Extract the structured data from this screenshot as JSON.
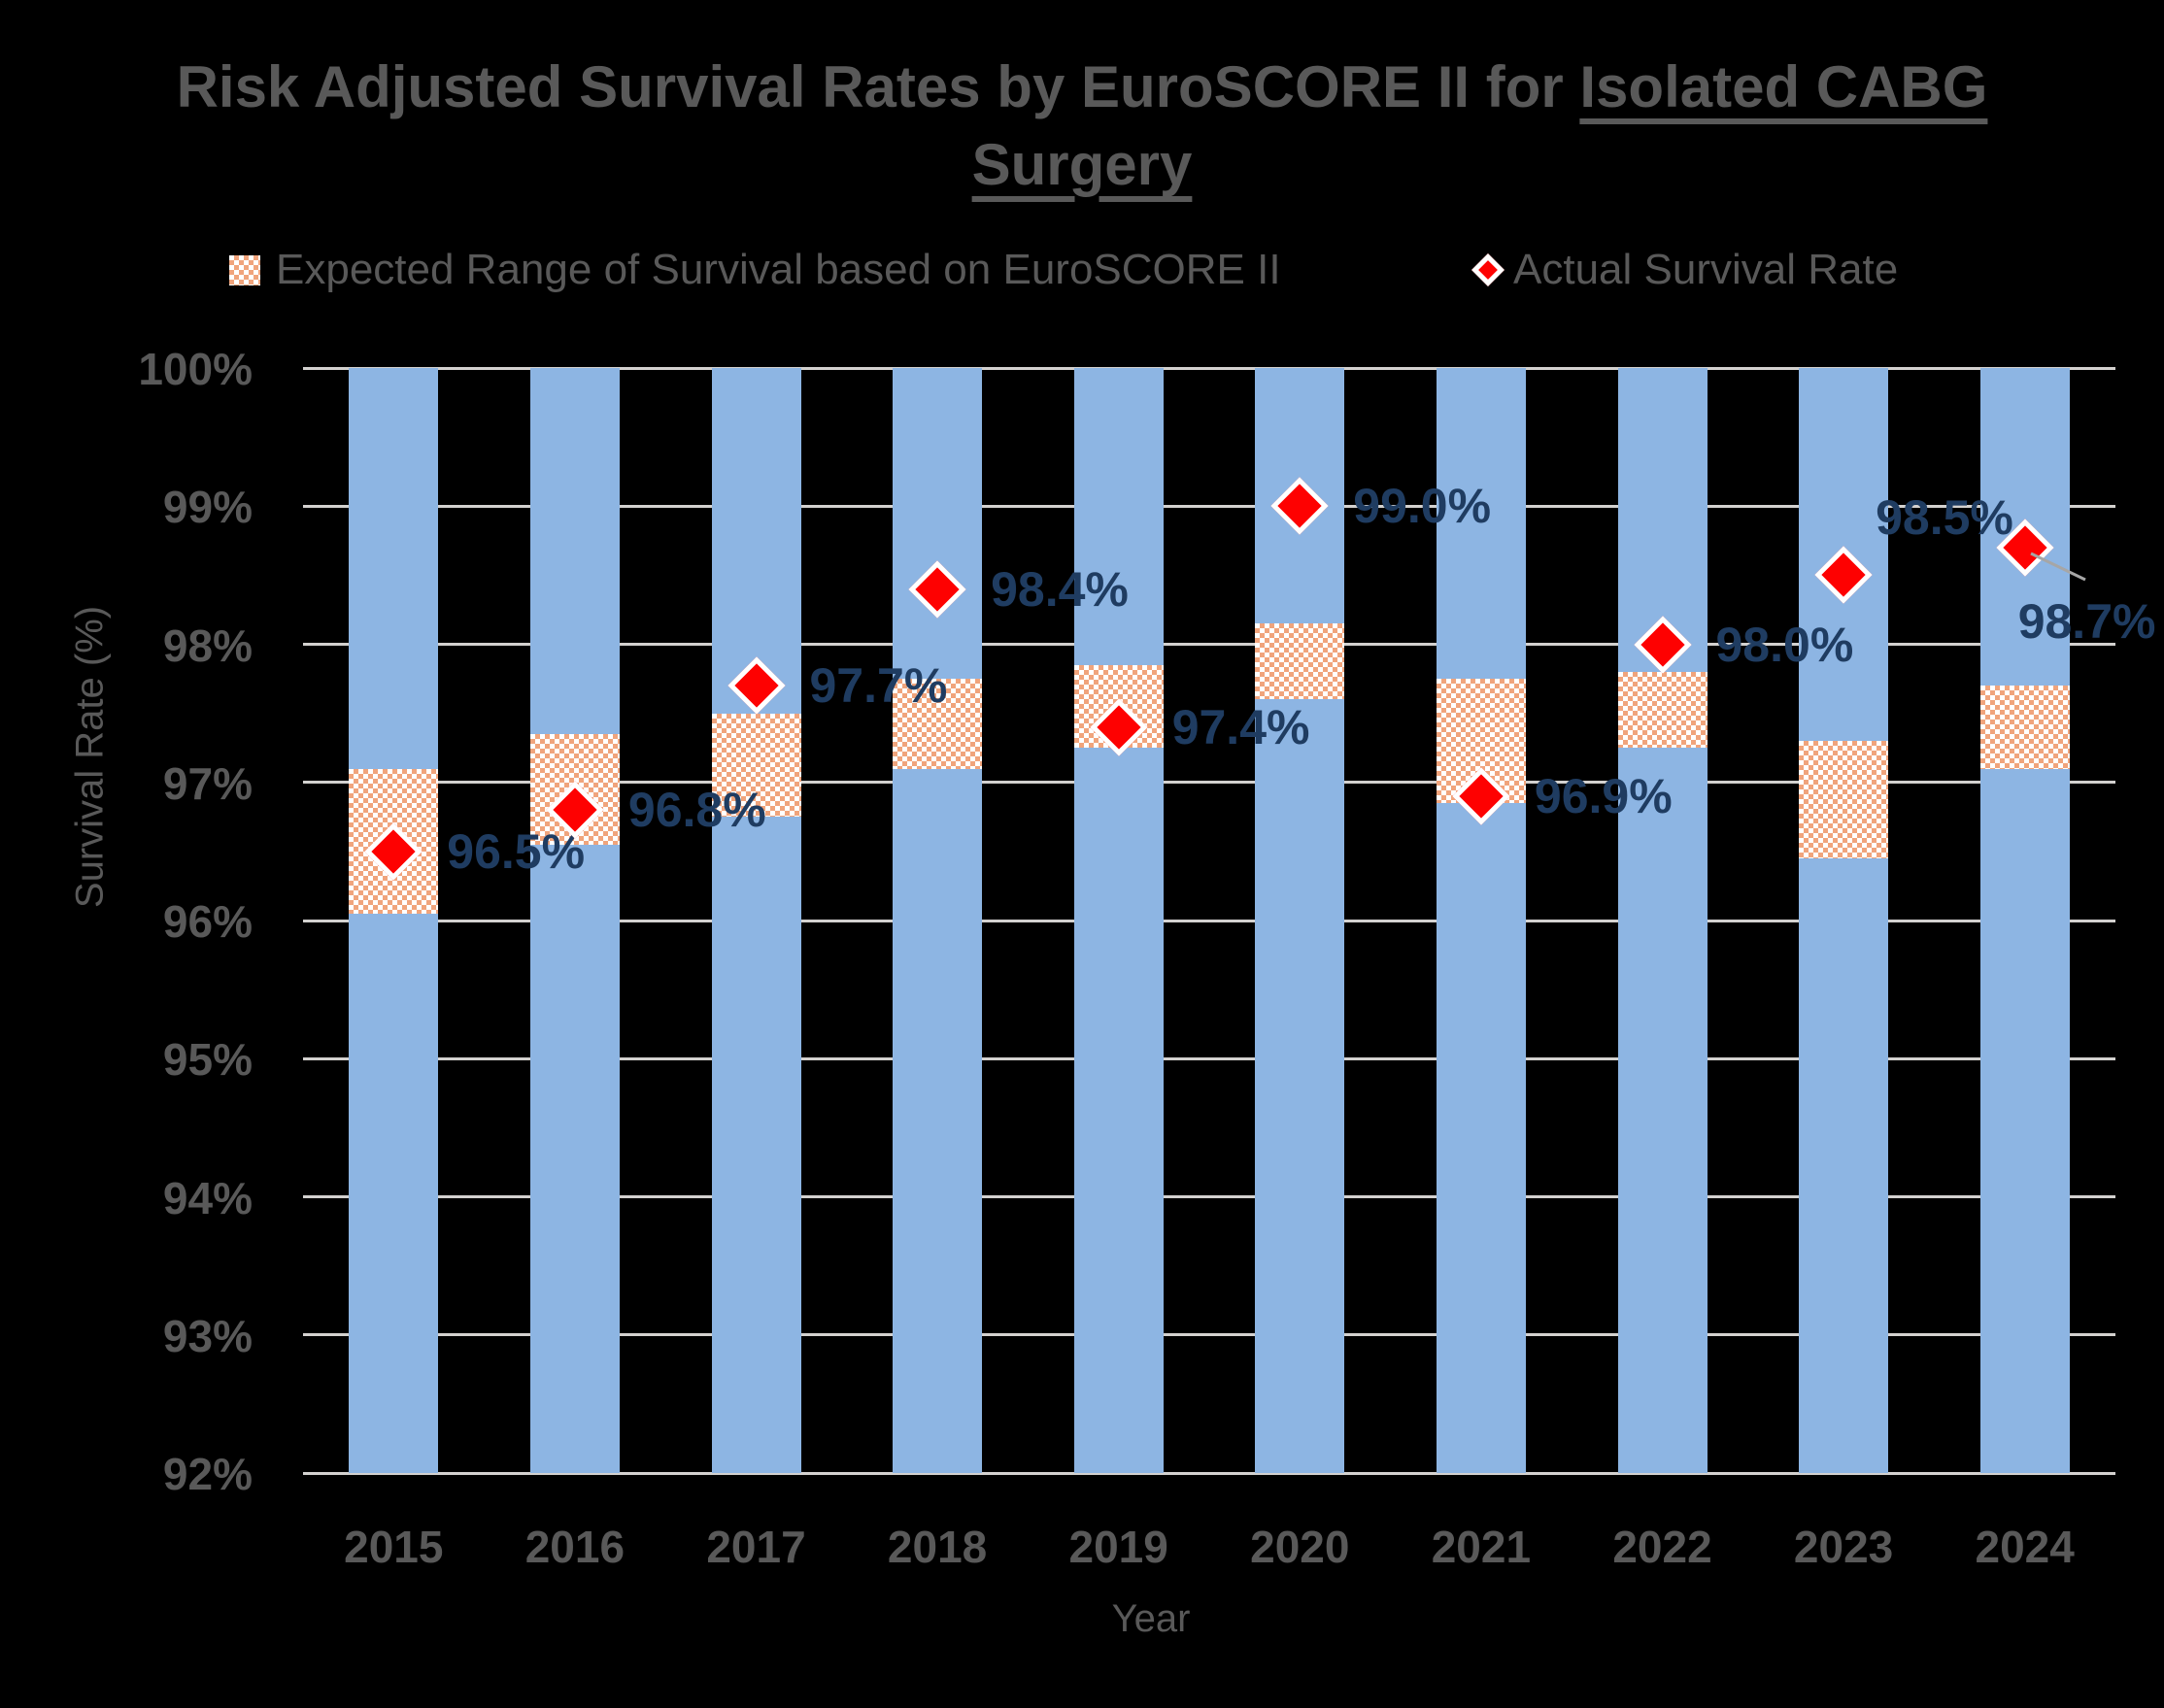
{
  "title": {
    "line1_prefix": "Risk Adjusted Survival Rates by EuroSCORE II for ",
    "line1_underline": "Isolated CABG",
    "line2_underline": "Surgery"
  },
  "legend": {
    "expected_label": "Expected Range of Survival based on EuroSCORE II",
    "actual_label": "Actual Survival Rate"
  },
  "y_axis": {
    "title": "Survival Rate (%)",
    "tick_labels": [
      "100%",
      "99%",
      "98%",
      "97%",
      "96%",
      "95%",
      "94%",
      "93%",
      "92%"
    ],
    "min": 92,
    "max": 100
  },
  "x_axis": {
    "title": "Year"
  },
  "chart_data": {
    "type": "bar",
    "title": "Risk Adjusted Survival Rates by EuroSCORE II for Isolated CABG Surgery",
    "xlabel": "Year",
    "ylabel": "Survival Rate (%)",
    "ylim": [
      92,
      100
    ],
    "grid": true,
    "legend_position": "top",
    "categories": [
      "2015",
      "2016",
      "2017",
      "2018",
      "2019",
      "2020",
      "2021",
      "2022",
      "2023",
      "2024"
    ],
    "background_columns": {
      "note": "full-height light blue columns from 92% to 100% behind each category",
      "from": 92,
      "to": 100
    },
    "series": [
      {
        "name": "Expected Range of Survival based on EuroSCORE II",
        "type": "floating-range-bar",
        "pattern": "orange-white checkerboard",
        "ranges": [
          [
            96.05,
            97.1
          ],
          [
            96.55,
            97.35
          ],
          [
            96.75,
            97.5
          ],
          [
            97.1,
            97.75
          ],
          [
            97.25,
            97.85
          ],
          [
            97.6,
            98.15
          ],
          [
            96.85,
            97.75
          ],
          [
            97.25,
            97.8
          ],
          [
            96.45,
            97.3
          ],
          [
            97.1,
            97.7
          ]
        ]
      },
      {
        "name": "Actual Survival Rate",
        "type": "scatter",
        "marker": "red-diamond",
        "values": [
          96.5,
          96.8,
          97.7,
          98.4,
          97.4,
          99.0,
          96.9,
          98.0,
          98.5,
          98.7
        ],
        "data_labels": [
          "96.5%",
          "96.8%",
          "97.7%",
          "98.4%",
          "97.4%",
          "99.0%",
          "96.9%",
          "98.0%",
          "98.5%",
          "98.7%"
        ]
      }
    ]
  },
  "colors": {
    "background": "#000000",
    "bar_blue": "#8DB5E3",
    "band_orange": "#F0A47C",
    "diamond_red": "#FE0101",
    "diamond_border": "#FFFFFF",
    "data_label_navy": "#1F3C61",
    "text_gray": "#595959",
    "gridline_gray": "#D3D1CF",
    "leader_line_gray": "#A6A6A6"
  }
}
